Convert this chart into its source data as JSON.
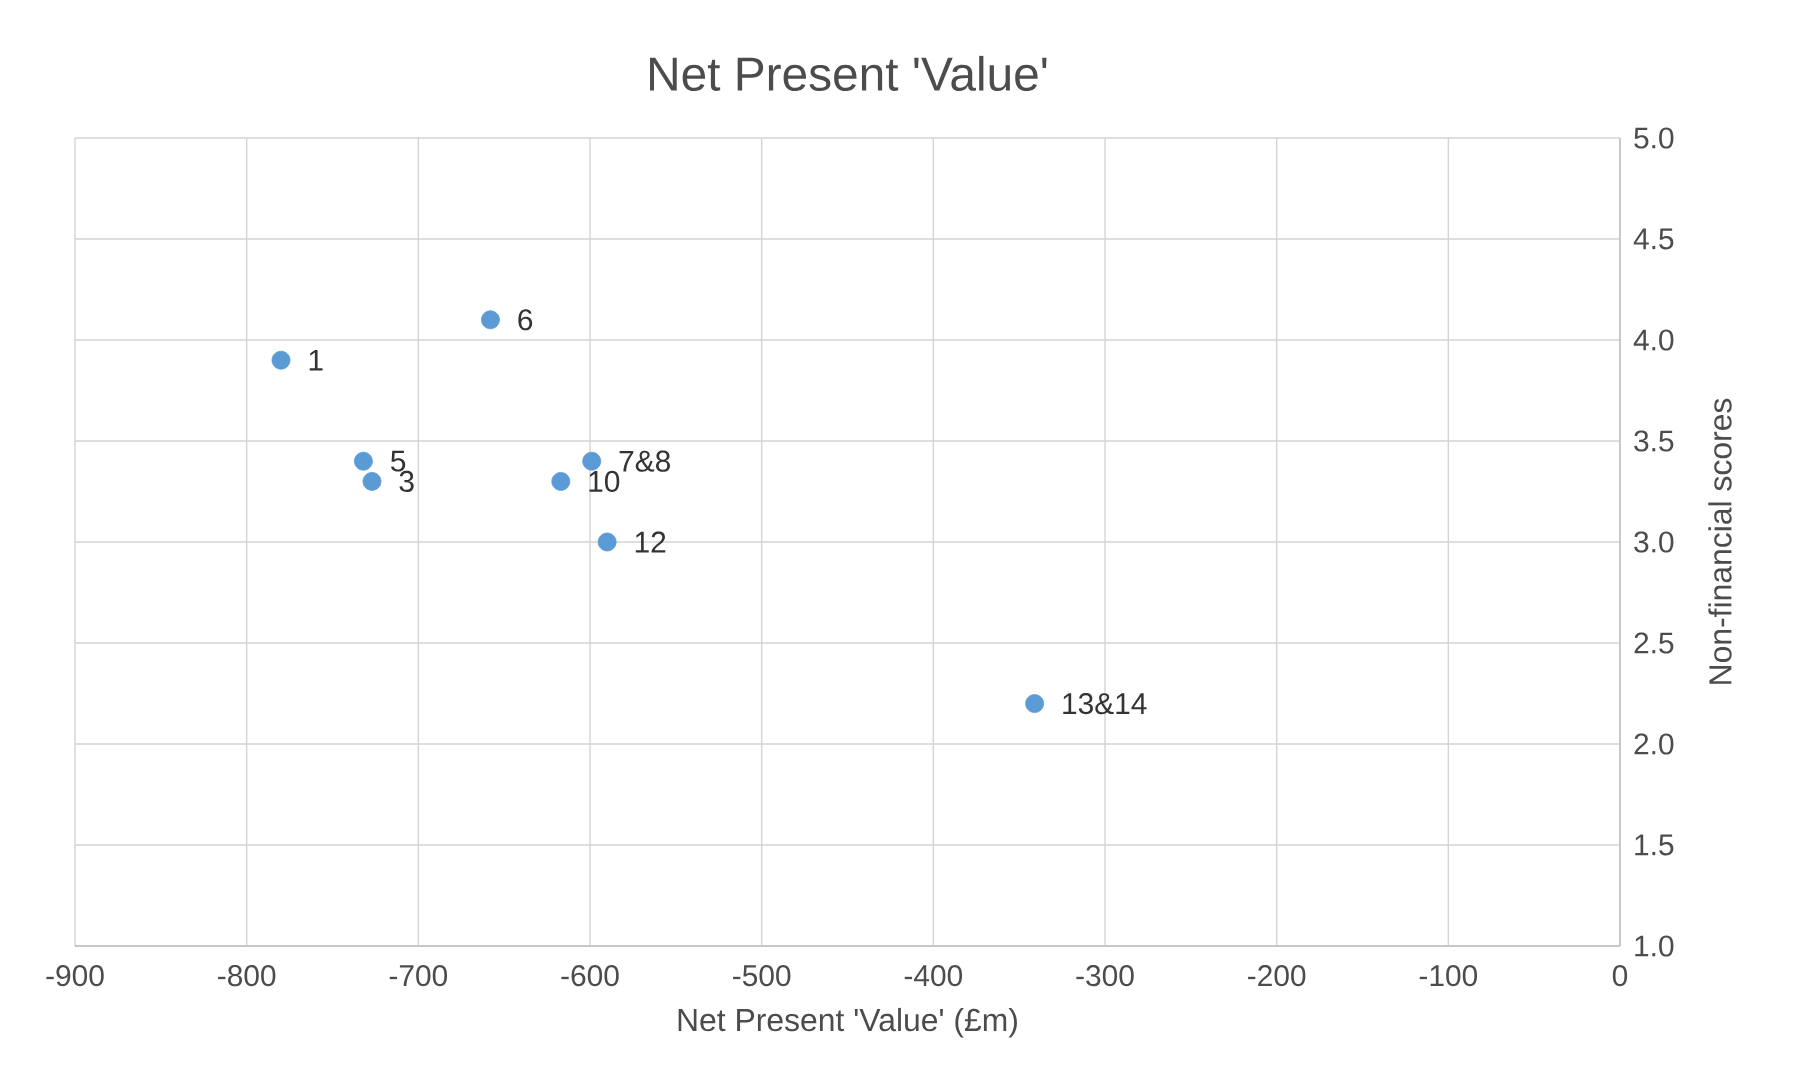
{
  "chart_data": {
    "type": "scatter",
    "title": "Net Present 'Value'",
    "xlabel": "Net Present 'Value' (£m)",
    "ylabel": "Non-financial scores",
    "x": [
      -780,
      -658,
      -732,
      -727,
      -599,
      -617,
      -590,
      -341
    ],
    "values": [
      3.9,
      4.1,
      3.4,
      3.3,
      3.4,
      3.3,
      3.0,
      2.2
    ],
    "color": "#5b9bd5",
    "xlim": [
      -900,
      0
    ],
    "xticks": [
      -900,
      -800,
      -700,
      -600,
      -500,
      -400,
      -300,
      -200,
      -100,
      0
    ],
    "ylim": [
      1.0,
      5.0
    ],
    "yticks": [
      {
        "value": 1.0,
        "label": "1.0"
      },
      {
        "value": 1.5,
        "label": "1.5"
      },
      {
        "value": 2.0,
        "label": "2.0"
      },
      {
        "value": 2.5,
        "label": "2.5"
      },
      {
        "value": 3.0,
        "label": "3.0"
      },
      {
        "value": 3.5,
        "label": "3.5"
      },
      {
        "value": 4.0,
        "label": "4.0"
      },
      {
        "value": 4.5,
        "label": "4.5"
      },
      {
        "value": 5.0,
        "label": "5.0"
      }
    ],
    "grid": true,
    "annotations": [
      {
        "text": "1",
        "x": -780,
        "y": 3.9
      },
      {
        "text": "6",
        "x": -658,
        "y": 4.1
      },
      {
        "text": "5",
        "x": -732,
        "y": 3.4
      },
      {
        "text": "3",
        "x": -727,
        "y": 3.3
      },
      {
        "text": "7&8",
        "x": -599,
        "y": 3.4
      },
      {
        "text": "10",
        "x": -617,
        "y": 3.3
      },
      {
        "text": "12",
        "x": -590,
        "y": 3.0
      },
      {
        "text": "13&14",
        "x": -341,
        "y": 2.2
      }
    ]
  }
}
